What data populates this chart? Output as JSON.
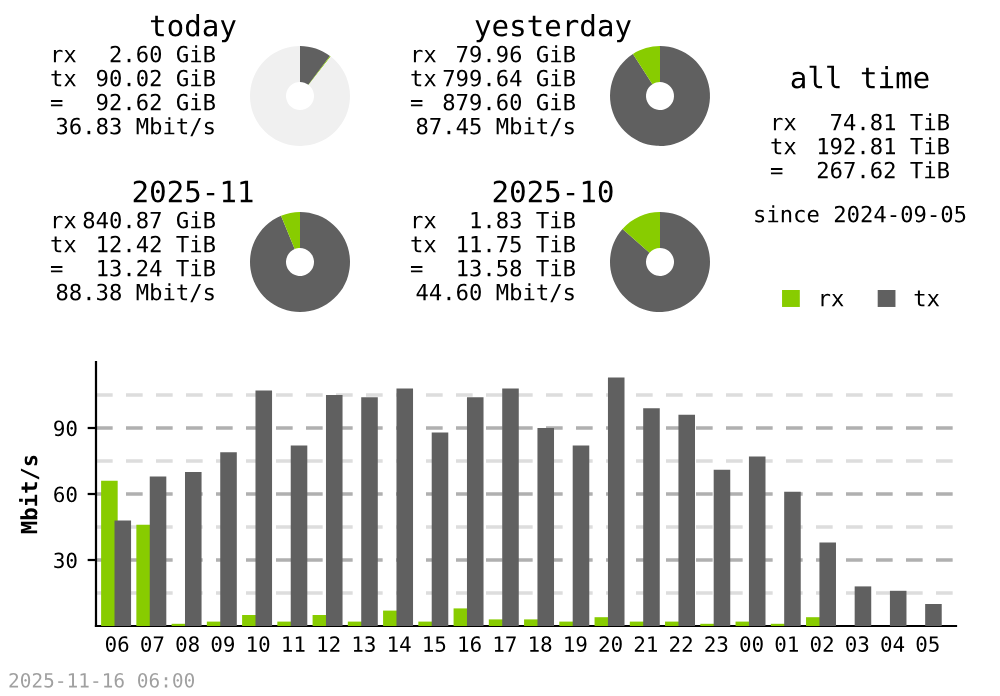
{
  "chart_data": [
    {
      "type": "donut",
      "title": "today",
      "categories": [
        null,
        null,
        null
      ],
      "values": [
        10.23,
        0.3,
        89.47
      ],
      "colors": [
        "#606060",
        "#88cc00",
        "#f0f0f0"
      ],
      "annotations": [
        "rx 2.60 GiB",
        "tx 90.02 GiB",
        "= 92.62 GiB",
        "36.83 Mbit/s"
      ]
    },
    {
      "type": "donut",
      "title": "yesterday",
      "categories": [
        null,
        null
      ],
      "values": [
        90.9,
        9.1
      ],
      "colors": [
        "#606060",
        "#88cc00"
      ],
      "annotations": [
        "rx 79.96 GiB",
        "tx 799.64 GiB",
        "= 879.60 GiB",
        "87.45 Mbit/s"
      ]
    },
    {
      "type": "other",
      "title": "all time",
      "annotations": [
        "rx 74.81 TiB",
        "tx 192.81 TiB",
        "= 267.62 TiB",
        "since 2024-09-05"
      ]
    },
    {
      "type": "donut",
      "title": "2025-11",
      "categories": [
        null,
        null
      ],
      "values": [
        93.8,
        6.2
      ],
      "colors": [
        "#606060",
        "#88cc00"
      ],
      "annotations": [
        "rx 840.87 GiB",
        "tx 12.42 TiB",
        "= 13.24 TiB",
        "88.38 Mbit/s"
      ]
    },
    {
      "type": "donut",
      "title": "2025-10",
      "categories": [
        null,
        null
      ],
      "values": [
        86.5,
        13.5
      ],
      "colors": [
        "#606060",
        "#88cc00"
      ],
      "annotations": [
        "rx 1.83 TiB",
        "tx 11.75 TiB",
        "= 13.58 TiB",
        "44.60 Mbit/s"
      ]
    },
    {
      "type": "bar",
      "ylabel": "Mbit/s",
      "categories": [
        "06",
        "07",
        "08",
        "09",
        "10",
        "11",
        "12",
        "13",
        "14",
        "15",
        "16",
        "17",
        "18",
        "19",
        "20",
        "21",
        "22",
        "23",
        "00",
        "01",
        "02",
        "03",
        "04",
        "05"
      ],
      "series": [
        {
          "name": "rx",
          "color": "#88cc00",
          "values": [
            66,
            46,
            1,
            2,
            5,
            2,
            5,
            2,
            7,
            2,
            8,
            3,
            3,
            2,
            4,
            2,
            2,
            1,
            2,
            1,
            4,
            0,
            0,
            0
          ]
        },
        {
          "name": "tx",
          "color": "#606060",
          "values": [
            48,
            68,
            70,
            79,
            107,
            82,
            105,
            104,
            108,
            88,
            104,
            108,
            90,
            82,
            113,
            99,
            96,
            71,
            77,
            61,
            38,
            18,
            16,
            10
          ]
        }
      ],
      "ylim": [
        0,
        120
      ],
      "yticks": [
        {
          "value": 15,
          "label": null
        },
        30,
        {
          "value": 45,
          "label": null
        },
        60,
        {
          "value": 75,
          "label": null
        },
        90,
        {
          "value": 105,
          "label": null
        }
      ],
      "grid": "y",
      "legend": "top right",
      "annotations": [
        "2025-11-16 06:00"
      ]
    }
  ]
}
